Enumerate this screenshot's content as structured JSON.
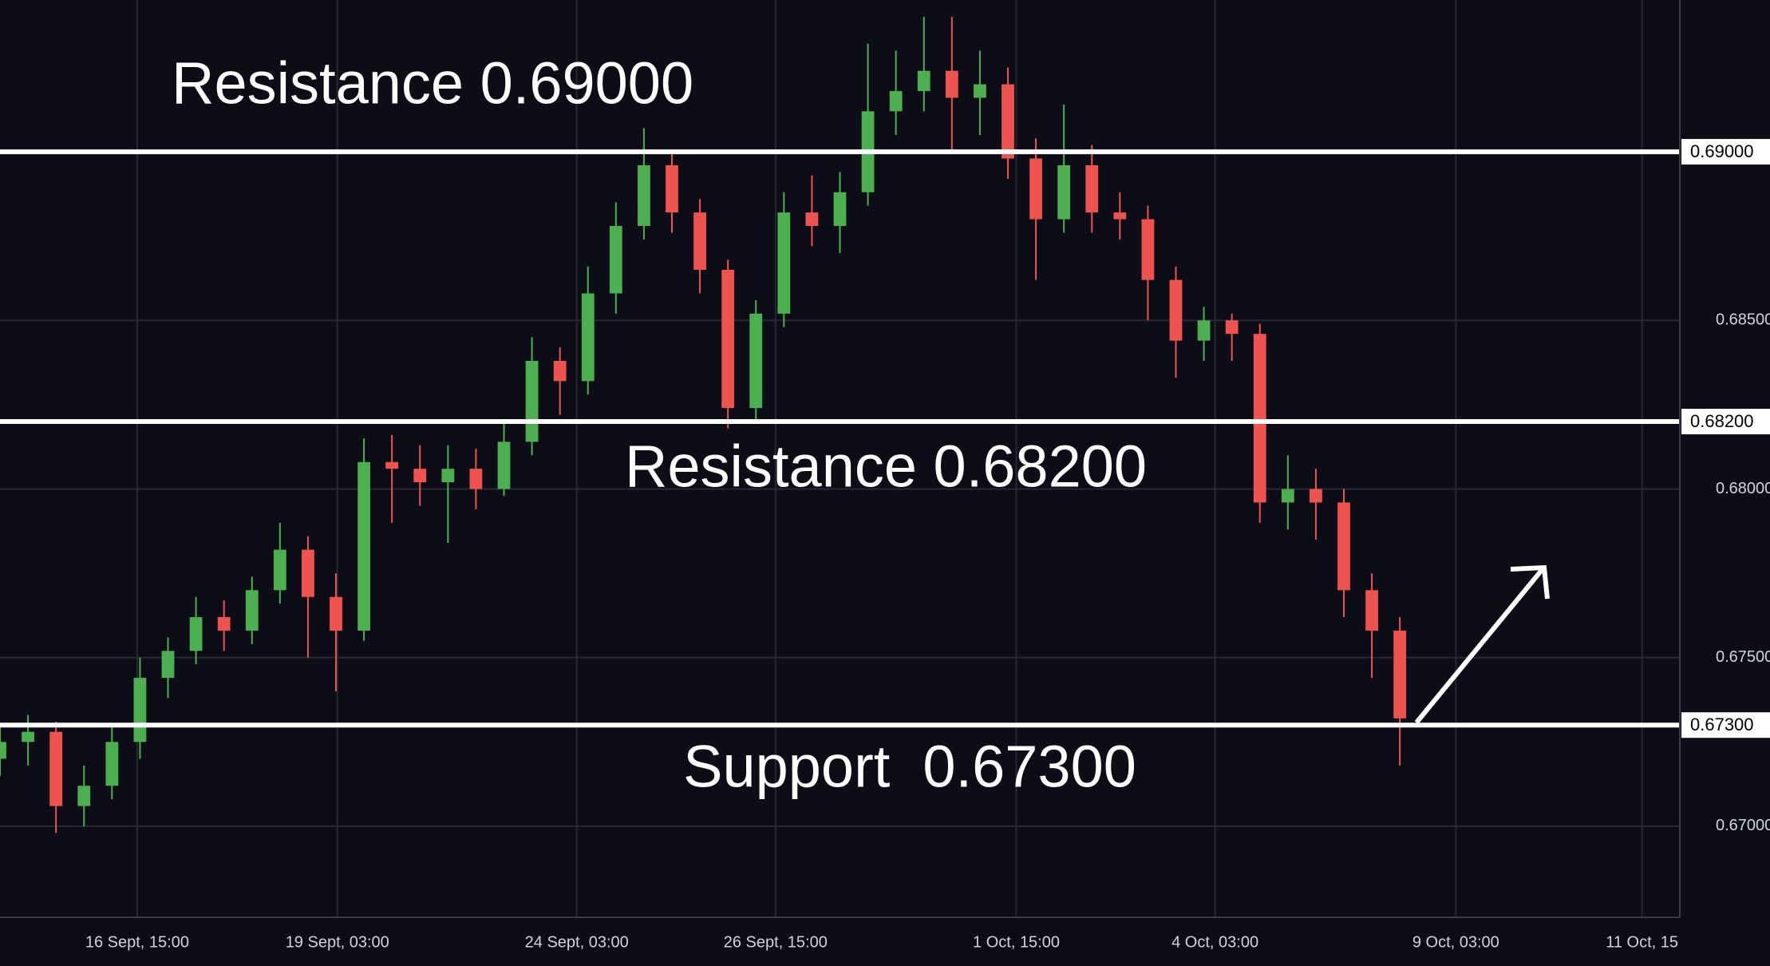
{
  "chart_data": {
    "type": "candlestick",
    "x": [
      0,
      2,
      4,
      6,
      8,
      10,
      12,
      14,
      16,
      18,
      20,
      22,
      24,
      26,
      28,
      30,
      32,
      34,
      36,
      38,
      40,
      42,
      44,
      46,
      48,
      50,
      52,
      54,
      56,
      58,
      60,
      62,
      64,
      66,
      68,
      70,
      72,
      74,
      76,
      78,
      80,
      82,
      84,
      86,
      88,
      90,
      92,
      94,
      96,
      98,
      100
    ],
    "open": [
      0.672,
      0.6725,
      0.6728,
      0.6706,
      0.6712,
      0.6725,
      0.6744,
      0.6752,
      0.6762,
      0.6758,
      0.677,
      0.6782,
      0.6768,
      0.6758,
      0.6808,
      0.6806,
      0.6802,
      0.6806,
      0.68,
      0.6814,
      0.6838,
      0.6832,
      0.6858,
      0.6878,
      0.6896,
      0.6882,
      0.6865,
      0.6824,
      0.6852,
      0.6882,
      0.6878,
      0.6888,
      0.6912,
      0.6918,
      0.6924,
      0.6916,
      0.692,
      0.6898,
      0.688,
      0.6896,
      0.6882,
      0.688,
      0.6862,
      0.6844,
      0.685,
      0.6846,
      0.6796,
      0.68,
      0.6796,
      0.677,
      0.6758
    ],
    "high": [
      0.673,
      0.6733,
      0.6731,
      0.6718,
      0.673,
      0.675,
      0.6756,
      0.6768,
      0.6767,
      0.6774,
      0.679,
      0.6786,
      0.6775,
      0.6815,
      0.6816,
      0.6813,
      0.6813,
      0.6812,
      0.682,
      0.6845,
      0.6842,
      0.6866,
      0.6885,
      0.6907,
      0.69,
      0.6886,
      0.6868,
      0.6856,
      0.6888,
      0.6893,
      0.6894,
      0.6932,
      0.693,
      0.694,
      0.694,
      0.693,
      0.6925,
      0.6904,
      0.6914,
      0.6902,
      0.6888,
      0.6884,
      0.6866,
      0.6854,
      0.6852,
      0.6849,
      0.681,
      0.6806,
      0.68,
      0.6775,
      0.6762
    ],
    "low": [
      0.6715,
      0.6718,
      0.6698,
      0.67,
      0.6708,
      0.672,
      0.6738,
      0.6748,
      0.6752,
      0.6754,
      0.6766,
      0.675,
      0.674,
      0.6755,
      0.679,
      0.6795,
      0.6784,
      0.6794,
      0.6798,
      0.681,
      0.6822,
      0.6828,
      0.6852,
      0.6874,
      0.6876,
      0.6858,
      0.6818,
      0.682,
      0.6848,
      0.6872,
      0.687,
      0.6884,
      0.6905,
      0.6912,
      0.69,
      0.6905,
      0.6892,
      0.6862,
      0.6876,
      0.6876,
      0.6874,
      0.685,
      0.6833,
      0.6838,
      0.6838,
      0.679,
      0.6788,
      0.6785,
      0.6762,
      0.6744,
      0.6718
    ],
    "close": [
      0.6725,
      0.6728,
      0.6706,
      0.6712,
      0.6725,
      0.6744,
      0.6752,
      0.6762,
      0.6758,
      0.677,
      0.6782,
      0.6768,
      0.6758,
      0.6808,
      0.6806,
      0.6802,
      0.6806,
      0.68,
      0.6814,
      0.6838,
      0.6832,
      0.6858,
      0.6878,
      0.6896,
      0.6882,
      0.6865,
      0.6824,
      0.6852,
      0.6882,
      0.6878,
      0.6888,
      0.6912,
      0.6918,
      0.6924,
      0.6916,
      0.692,
      0.6898,
      0.688,
      0.6896,
      0.6882,
      0.688,
      0.6862,
      0.6844,
      0.685,
      0.6846,
      0.6796,
      0.68,
      0.6796,
      0.677,
      0.6758,
      0.6732
    ],
    "up_color": "#4caf50",
    "down_color": "#ef5350",
    "xlim": [
      0,
      120
    ],
    "xticks": [
      {
        "value": 9.8,
        "label": "16 Sept, 15:00"
      },
      {
        "value": 24.1,
        "label": "19 Sept, 03:00"
      },
      {
        "value": 41.2,
        "label": "24 Sept, 03:00"
      },
      {
        "value": 55.4,
        "label": "26 Sept, 15:00"
      },
      {
        "value": 72.6,
        "label": "1 Oct, 15:00"
      },
      {
        "value": 86.8,
        "label": "4 Oct, 03:00"
      },
      {
        "value": 104,
        "label": "9 Oct, 03:00"
      },
      {
        "value": 117.3,
        "label": "11 Oct, 15"
      }
    ],
    "ylim": [
      0.6673,
      0.6945
    ],
    "yticks": [
      {
        "value": 0.67,
        "label": "0.67000"
      },
      {
        "value": 0.675,
        "label": "0.67500"
      },
      {
        "value": 0.68,
        "label": "0.68000"
      },
      {
        "value": 0.685,
        "label": "0.68500"
      }
    ],
    "grid": true,
    "levels": [
      {
        "value": 0.69,
        "label": "0.69000",
        "text": "Resistance 0.69000"
      },
      {
        "value": 0.682,
        "label": "0.68200",
        "text": "Resistance 0.68200"
      },
      {
        "value": 0.673,
        "label": "0.67300",
        "text": "Support  0.67300"
      }
    ]
  }
}
